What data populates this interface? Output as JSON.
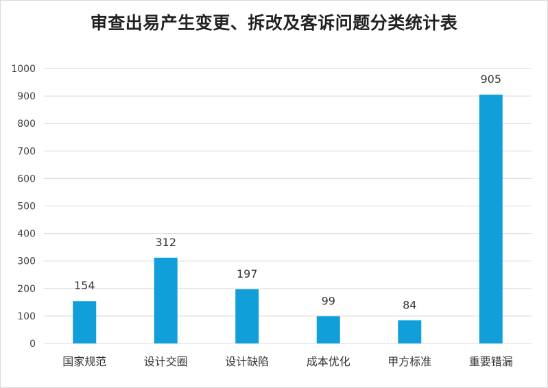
{
  "chart_data": {
    "type": "bar",
    "title": "审查出易产生变更、拆改及客诉问题分类统计表",
    "categories": [
      "国家规范",
      "设计交圈",
      "设计缺陷",
      "成本优化",
      "甲方标准",
      "重要错漏"
    ],
    "values": [
      154,
      312,
      197,
      99,
      84,
      905
    ],
    "data_labels": [
      "154",
      "312",
      "197",
      "99",
      "84",
      "905"
    ],
    "ylim": [
      0,
      1000
    ],
    "yticks": [
      "0",
      "100",
      "200",
      "300",
      "400",
      "500",
      "600",
      "700",
      "800",
      "900",
      "1000"
    ],
    "grid": true,
    "bar_color": "#109fd8",
    "grid_color": "#d9d9d9"
  }
}
